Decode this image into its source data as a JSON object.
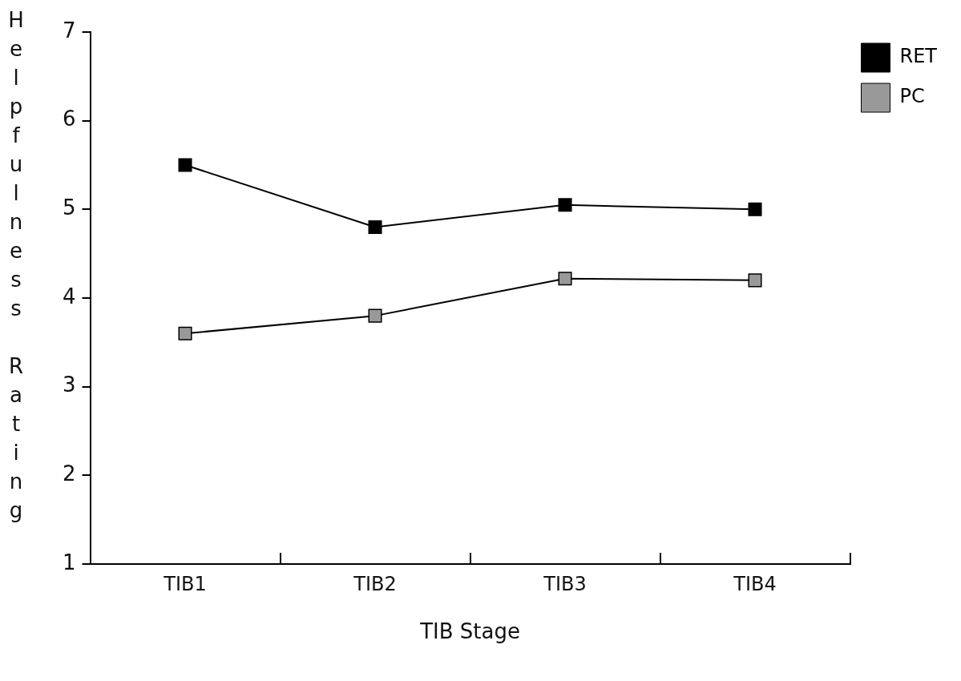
{
  "chart_data": {
    "type": "line",
    "xlabel": "TIB Stage",
    "ylabel": "Helpfulness Rating",
    "categories": [
      "TIB1",
      "TIB2",
      "TIB3",
      "TIB4"
    ],
    "series": [
      {
        "name": "RET",
        "color": "#000000",
        "values": [
          5.5,
          4.8,
          5.05,
          5.0
        ]
      },
      {
        "name": "PC",
        "color": "#999999",
        "values": [
          3.6,
          3.8,
          4.22,
          4.2
        ]
      }
    ],
    "ylim": [
      1,
      7
    ],
    "yticks": [
      1,
      2,
      3,
      4,
      5,
      6,
      7
    ],
    "grid": false,
    "legend": "top right",
    "marker": "square",
    "line_style": "solid"
  }
}
